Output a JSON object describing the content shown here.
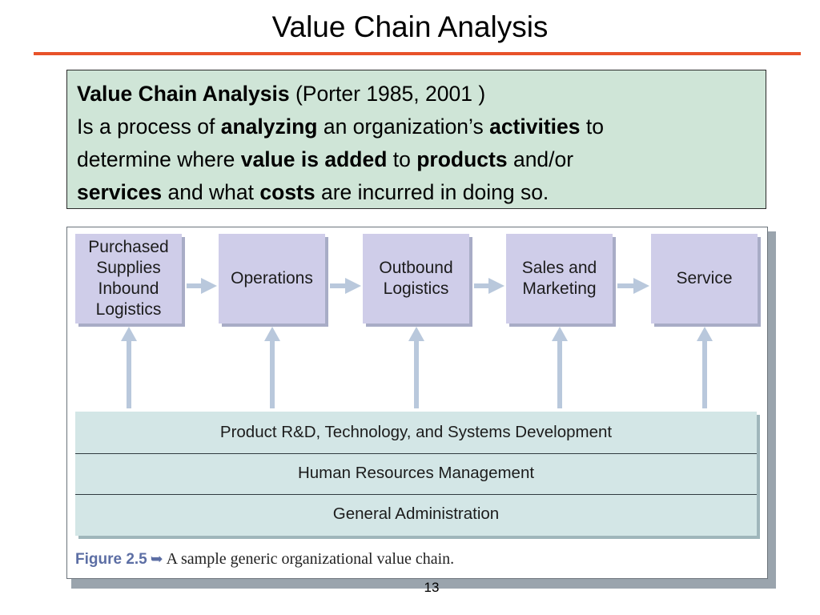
{
  "slide": {
    "title": "Value Chain Analysis",
    "page_number": "13"
  },
  "definition": {
    "term": "Value Chain Analysis",
    "citation": " (Porter 1985, 2001 )",
    "line2": [
      {
        "text": "Is a process of ",
        "bold": false
      },
      {
        "text": "analyzing",
        "bold": true
      },
      {
        "text": " an organization’s ",
        "bold": false
      },
      {
        "text": "activities",
        "bold": true
      },
      {
        "text": " to",
        "bold": false
      }
    ],
    "line3": [
      {
        "text": "determine where ",
        "bold": false
      },
      {
        "text": "value is added",
        "bold": true
      },
      {
        "text": " to ",
        "bold": false
      },
      {
        "text": "products",
        "bold": true
      },
      {
        "text": " and/or",
        "bold": false
      }
    ],
    "line4": [
      {
        "text": "services",
        "bold": true
      },
      {
        "text": " and what ",
        "bold": false
      },
      {
        "text": "costs",
        "bold": true
      },
      {
        "text": " are incurred in doing so.",
        "bold": false
      }
    ]
  },
  "figure": {
    "primary_activities": [
      "Purchased\nSupplies\nInbound\nLogistics",
      "Operations",
      "Outbound\nLogistics",
      "Sales and\nMarketing",
      "Service"
    ],
    "support_activities": [
      "Product R&D, Technology, and Systems Development",
      "Human Resources Management",
      "General Administration"
    ],
    "caption": {
      "label": "Figure 2.5",
      "arrow": "➥",
      "text": "A sample generic organizational value chain."
    },
    "colors": {
      "primary_fill": "#cfcde9",
      "support_fill": "#d3e6e6",
      "arrow": "#b9c8dc",
      "caption_accent": "#5c6ea4"
    }
  }
}
